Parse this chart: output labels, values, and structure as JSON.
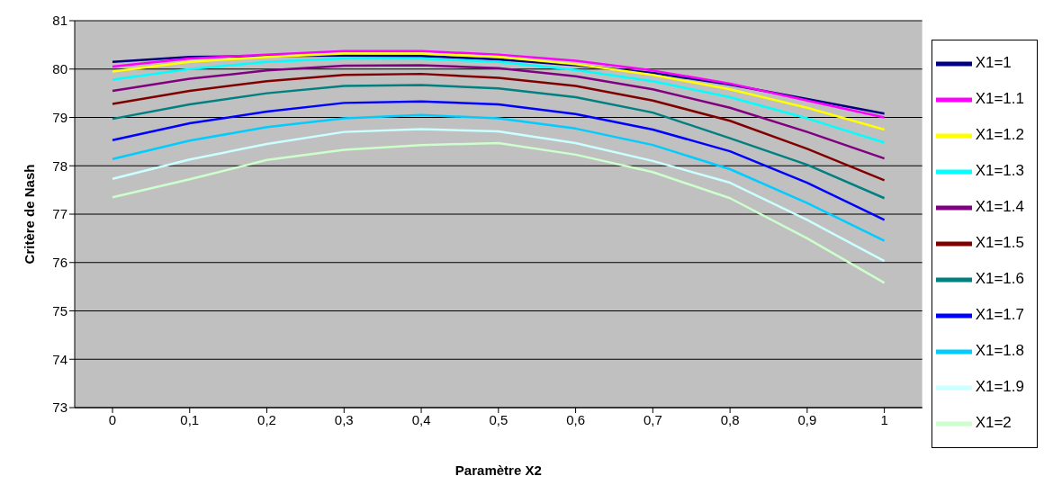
{
  "chart_data": {
    "type": "line",
    "xlabel": "Paramètre X2",
    "ylabel": "Critère de Nash",
    "categories": [
      "0",
      "0,1",
      "0,2",
      "0,3",
      "0,4",
      "0,5",
      "0,6",
      "0,7",
      "0,8",
      "0,9",
      "1"
    ],
    "ylim": [
      73,
      81
    ],
    "yticks": [
      73,
      74,
      75,
      76,
      77,
      78,
      79,
      80,
      81
    ],
    "grid": "y",
    "legend": "right",
    "marker": "none",
    "line_style": "solid",
    "series": [
      {
        "name": "X1=1",
        "color": "#000080",
        "values": [
          80.15,
          80.25,
          80.27,
          80.28,
          80.27,
          80.2,
          80.08,
          79.92,
          79.68,
          79.38,
          79.08
        ]
      },
      {
        "name": "X1=1.1",
        "color": "#ff00ff",
        "values": [
          80.05,
          80.22,
          80.3,
          80.37,
          80.37,
          80.3,
          80.17,
          79.97,
          79.7,
          79.35,
          79.0
        ]
      },
      {
        "name": "X1=1.2",
        "color": "#ffff00",
        "values": [
          79.95,
          80.15,
          80.25,
          80.32,
          80.32,
          80.25,
          80.1,
          79.88,
          79.58,
          79.2,
          78.75
        ]
      },
      {
        "name": "X1=1.3",
        "color": "#00ffff",
        "values": [
          79.78,
          80.0,
          80.15,
          80.22,
          80.22,
          80.15,
          79.98,
          79.75,
          79.42,
          78.98,
          78.48
        ]
      },
      {
        "name": "X1=1.4",
        "color": "#800080",
        "values": [
          79.55,
          79.8,
          79.97,
          80.07,
          80.08,
          80.02,
          79.85,
          79.58,
          79.2,
          78.7,
          78.15
        ]
      },
      {
        "name": "X1=1.5",
        "color": "#800000",
        "values": [
          79.28,
          79.55,
          79.75,
          79.88,
          79.9,
          79.82,
          79.65,
          79.35,
          78.93,
          78.35,
          77.7
        ]
      },
      {
        "name": "X1=1.6",
        "color": "#008080",
        "values": [
          78.97,
          79.27,
          79.5,
          79.65,
          79.67,
          79.6,
          79.42,
          79.1,
          78.57,
          78.02,
          77.33
        ]
      },
      {
        "name": "X1=1.7",
        "color": "#0000ff",
        "values": [
          78.53,
          78.88,
          79.12,
          79.3,
          79.33,
          79.27,
          79.07,
          78.75,
          78.3,
          77.65,
          76.88
        ]
      },
      {
        "name": "X1=1.8",
        "color": "#00ccff",
        "values": [
          78.14,
          78.52,
          78.8,
          78.98,
          79.05,
          78.98,
          78.77,
          78.43,
          77.93,
          77.23,
          76.45
        ]
      },
      {
        "name": "X1=1.9",
        "color": "#ccffff",
        "values": [
          77.73,
          78.13,
          78.45,
          78.7,
          78.76,
          78.71,
          78.47,
          78.1,
          77.65,
          76.88,
          76.03
        ]
      },
      {
        "name": "X1=2",
        "color": "#ccffcc",
        "values": [
          77.35,
          77.72,
          78.12,
          78.33,
          78.43,
          78.47,
          78.23,
          77.87,
          77.33,
          76.5,
          75.58
        ]
      }
    ]
  }
}
